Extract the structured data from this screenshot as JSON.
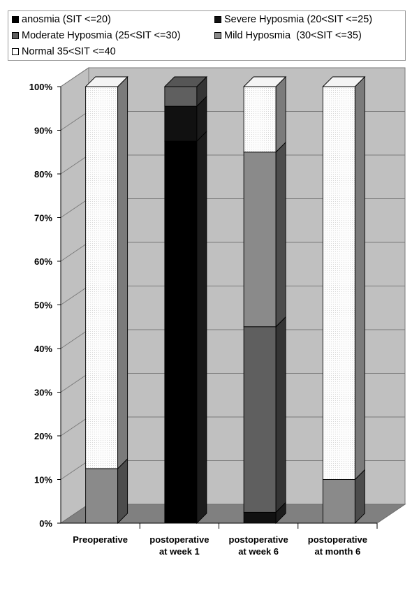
{
  "chart_data": {
    "type": "bar",
    "stacked": true,
    "percent": true,
    "three_d": true,
    "categories": [
      [
        "Preoperative"
      ],
      [
        "postoperative",
        "at week 1"
      ],
      [
        "postoperative",
        "at week 6"
      ],
      [
        "postoperative",
        "at month 6"
      ]
    ],
    "series": [
      {
        "name": "anosmia (SIT <=20)",
        "color": "#000000",
        "values": [
          0,
          87.5,
          0,
          0
        ]
      },
      {
        "name": "Severe Hyposmia (20<SIT <=25)",
        "color": "#111111",
        "values": [
          0,
          8,
          2.5,
          0
        ]
      },
      {
        "name": "Moderate Hyposmia (25<SIT <=30)",
        "color": "#5f5f5f",
        "values": [
          0,
          4.5,
          42.5,
          0
        ]
      },
      {
        "name": "Mild Hyposmia  (30<SIT <=35)",
        "color": "#8a8a8a",
        "values": [
          12.5,
          0,
          40,
          10
        ]
      },
      {
        "name": "Normal 35<SIT <=40",
        "color": "#fbfbfb",
        "values": [
          87.5,
          0,
          15,
          90
        ]
      }
    ],
    "yticks": [
      "0%",
      "10%",
      "20%",
      "30%",
      "40%",
      "50%",
      "60%",
      "70%",
      "80%",
      "90%",
      "100%"
    ],
    "ylim": [
      0,
      100
    ],
    "grid": true,
    "wall_color": "#c0c0c0",
    "floor_color": "#808080",
    "legend_position": "top"
  }
}
